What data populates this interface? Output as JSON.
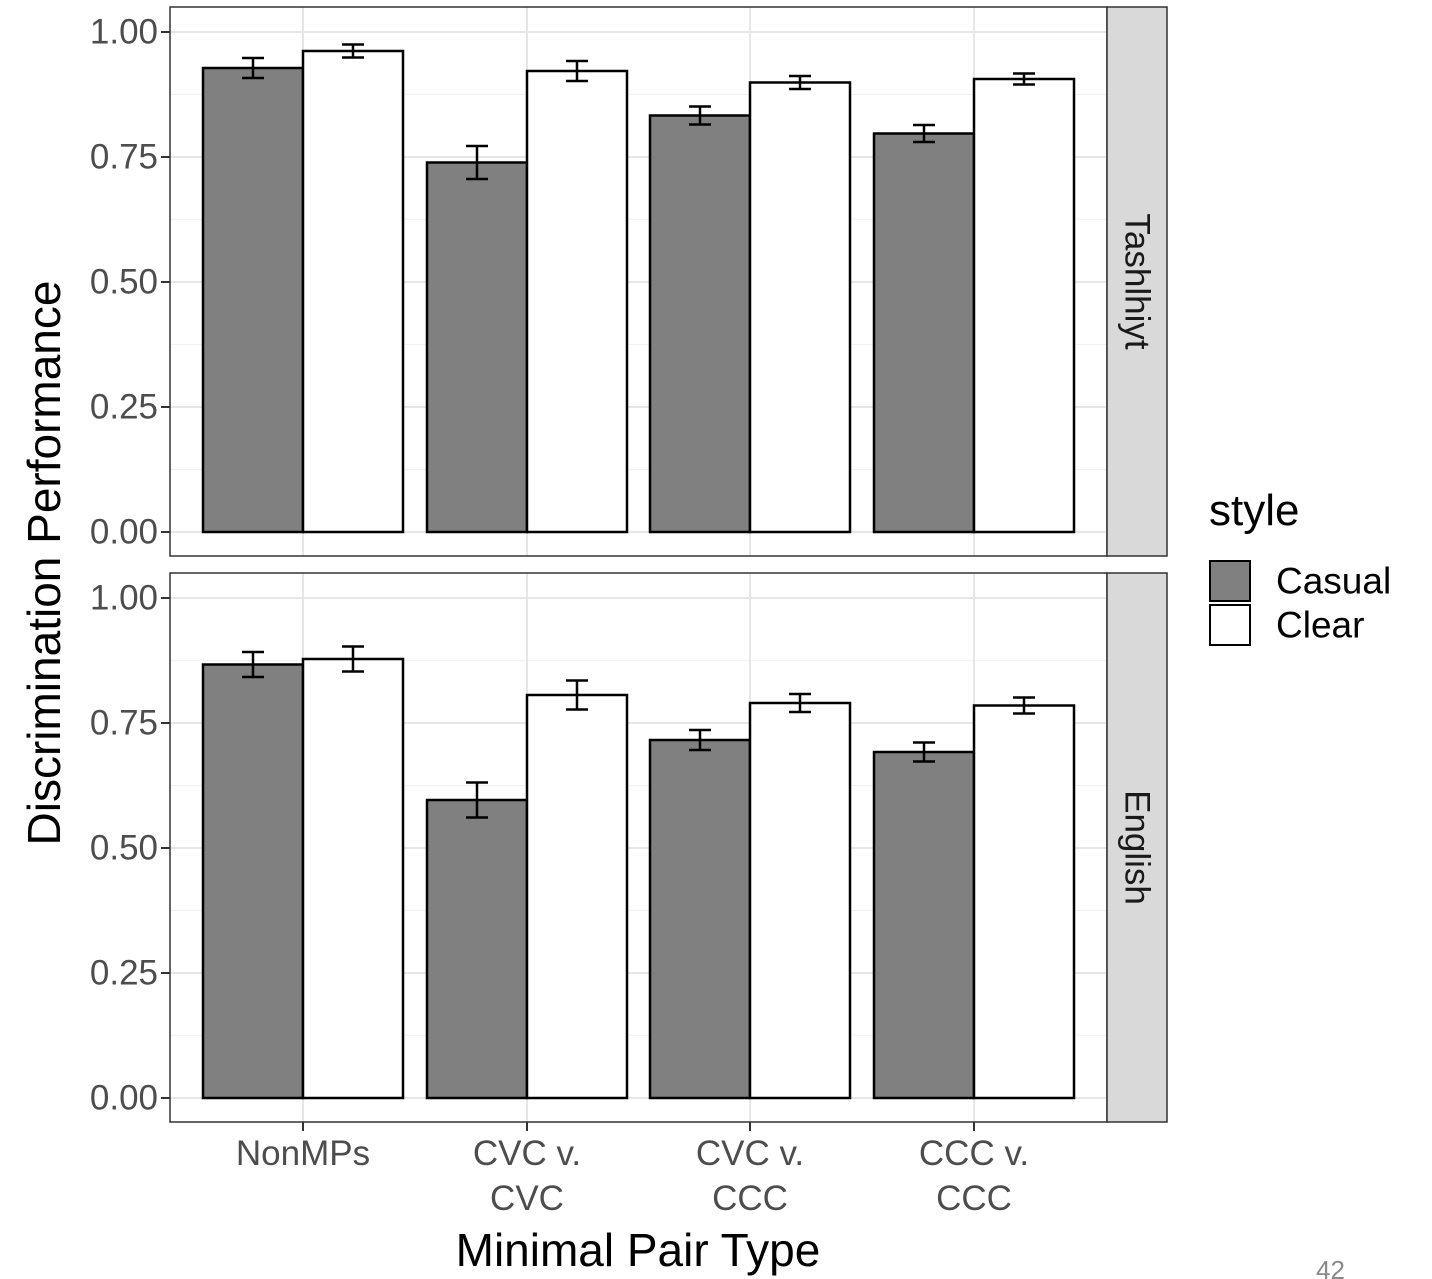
{
  "chart_data": {
    "type": "bar",
    "xlabel": "Minimal Pair Type",
    "ylabel": "Discrimination Performance",
    "ylim": [
      0,
      1.05
    ],
    "y_ticks": [
      "0.00",
      "0.25",
      "0.50",
      "0.75",
      "1.00"
    ],
    "categories": [
      [
        "NonMPs"
      ],
      [
        "CVC v.",
        "CVC"
      ],
      [
        "CVC v.",
        "CCC"
      ],
      [
        "CCC v.",
        "CCC"
      ]
    ],
    "legend": {
      "title": "style",
      "position": "right",
      "entries": [
        {
          "name": "Casual",
          "color": "#808080"
        },
        {
          "name": "Clear",
          "color": "#ffffff"
        }
      ]
    },
    "grid": true,
    "panels": [
      {
        "facet": "Tashlhiyt",
        "series": [
          {
            "name": "Casual",
            "values": [
              0.928,
              0.739,
              0.833,
              0.797
            ],
            "err": [
              0.02,
              0.033,
              0.018,
              0.017
            ]
          },
          {
            "name": "Clear",
            "values": [
              0.962,
              0.922,
              0.899,
              0.906
            ],
            "err": [
              0.013,
              0.02,
              0.013,
              0.011
            ]
          }
        ]
      },
      {
        "facet": "English",
        "series": [
          {
            "name": "Casual",
            "values": [
              0.867,
              0.596,
              0.716,
              0.692
            ],
            "err": [
              0.025,
              0.035,
              0.02,
              0.019
            ]
          },
          {
            "name": "Clear",
            "values": [
              0.878,
              0.806,
              0.79,
              0.785
            ],
            "err": [
              0.025,
              0.029,
              0.018,
              0.016
            ]
          }
        ]
      }
    ]
  },
  "page_number": "42"
}
